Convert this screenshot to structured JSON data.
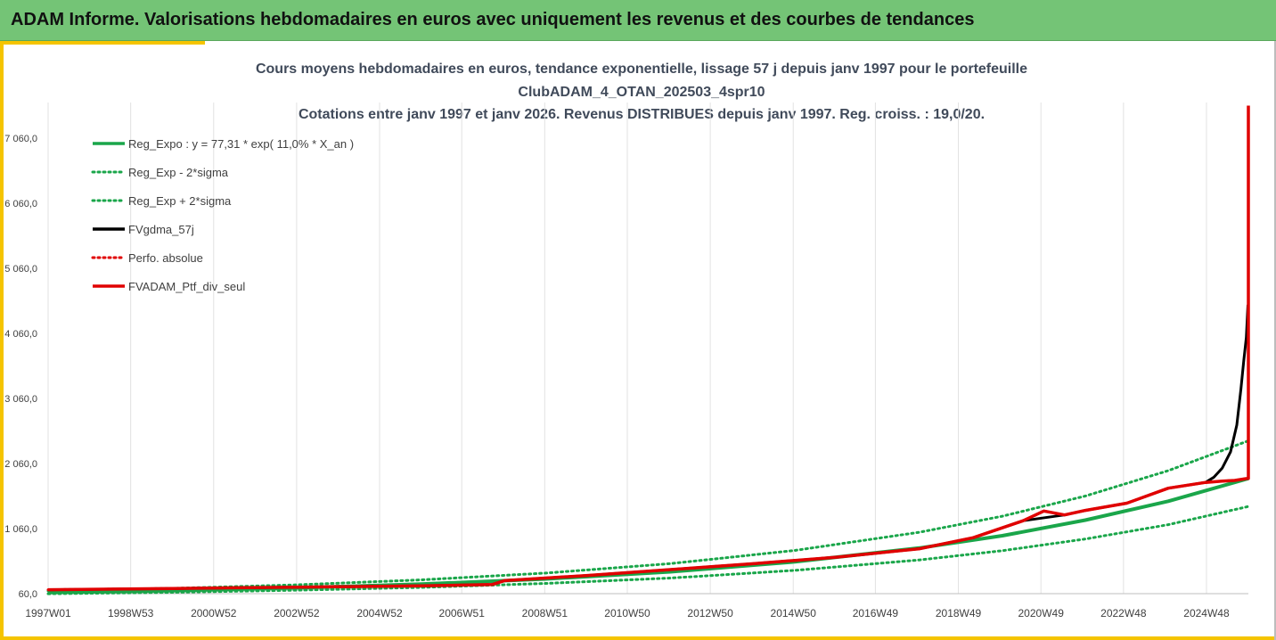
{
  "banner": {
    "title": "ADAM Informe. Valorisations hebdomadaires en euros avec uniquement les revenus et des courbes de tendances"
  },
  "colors": {
    "banner": "#74c476",
    "accent": "#f5c400",
    "green": "#1aa64a",
    "black": "#000000",
    "red": "#e00000"
  },
  "chart_data": {
    "type": "line",
    "title_lines": [
      "Cours moyens hebdomadaires  en euros, tendance exponentielle, lissage 57 j depuis janv 1997 pour le portefeuille",
      "ClubADAM_4_OTAN_202503_4spr10",
      "Cotations entre janv 1997 et janv 2026. Revenus DISTRIBUES depuis janv 1997. Reg. croiss. : 19,0/20."
    ],
    "xlim": [
      1997.0,
      2025.93
    ],
    "ylim": [
      60,
      7060
    ],
    "yticks": [
      60,
      1060,
      2060,
      3060,
      4060,
      5060,
      6060,
      7060
    ],
    "ytick_labels": [
      "60,0",
      "1 060,0",
      "2 060,0",
      "3 060,0",
      "4 060,0",
      "5 060,0",
      "6 060,0",
      "7 060,0"
    ],
    "xticks": [
      1997.0,
      1998.99,
      2000.99,
      2002.99,
      2004.99,
      2006.97,
      2008.97,
      2010.96,
      2012.96,
      2014.96,
      2016.94,
      2018.94,
      2020.93,
      2022.92,
      2024.92
    ],
    "xtick_labels": [
      "1997W01",
      "1998W53",
      "2000W52",
      "2002W52",
      "2004W52",
      "2006W51",
      "2008W51",
      "2010W50",
      "2012W50",
      "2014W50",
      "2016W49",
      "2018W49",
      "2020W49",
      "2022W48",
      "2024W48"
    ],
    "grid": "vertical",
    "legend_position": "top-left",
    "series": [
      {
        "name": "Reg_Expo : y = 77,31 * exp( 11,0% *  X_an )",
        "style": "solid",
        "color": "#1aa64a",
        "x": [
          1997.0,
          2000.0,
          2003.0,
          2006.0,
          2009.0,
          2012.0,
          2015.0,
          2018.0,
          2020.0,
          2022.0,
          2024.0,
          2025.93
        ],
        "y": [
          77,
          107,
          149,
          206,
          286,
          396,
          549,
          762,
          950,
          1190,
          1480,
          1830
        ]
      },
      {
        "name": "Reg_Exp - 2*sigma",
        "style": "dotted",
        "color": "#1aa64a",
        "x": [
          1997.0,
          2000.0,
          2003.0,
          2006.0,
          2009.0,
          2012.0,
          2015.0,
          2018.0,
          2020.0,
          2022.0,
          2024.0,
          2025.93
        ],
        "y": [
          58,
          81,
          113,
          156,
          217,
          300,
          417,
          578,
          720,
          900,
          1120,
          1400
        ]
      },
      {
        "name": "Reg_Exp + 2*sigma",
        "style": "dotted",
        "color": "#1aa64a",
        "x": [
          1997.0,
          2000.0,
          2003.0,
          2006.0,
          2009.0,
          2012.0,
          2015.0,
          2018.0,
          2020.0,
          2022.0,
          2024.0,
          2025.93
        ],
        "y": [
          101,
          141,
          196,
          272,
          377,
          522,
          724,
          1004,
          1250,
          1560,
          1950,
          2410
        ]
      },
      {
        "name": "FVgdma_57j",
        "style": "solid",
        "color": "#000000",
        "x": [
          1997.0,
          2000.0,
          2003.0,
          2006.0,
          2007.7,
          2008.0,
          2010.0,
          2012.0,
          2014.0,
          2016.0,
          2018.0,
          2019.3,
          2020.5,
          2021.5,
          2022.0,
          2023.0,
          2024.0,
          2024.9,
          2025.1,
          2025.3,
          2025.5,
          2025.65,
          2025.75,
          2025.82,
          2025.88,
          2025.92
        ],
        "y": [
          120,
          140,
          160,
          180,
          200,
          260,
          340,
          430,
          520,
          620,
          750,
          920,
          1180,
          1270,
          1340,
          1450,
          1680,
          1770,
          1850,
          1990,
          2240,
          2650,
          3200,
          3650,
          4000,
          4500
        ]
      },
      {
        "name": "Perfo. absolue",
        "style": "dotted",
        "color": "#e00000",
        "x": [
          1997.0,
          2000.0,
          2003.0,
          2006.0,
          2007.7,
          2008.0,
          2010.0,
          2012.0,
          2014.0,
          2016.0,
          2018.0,
          2019.3,
          2020.5,
          2021.0,
          2021.5,
          2022.0,
          2023.0,
          2024.0,
          2024.9,
          2025.3,
          2025.6,
          2025.9
        ],
        "y": [
          120,
          140,
          160,
          180,
          200,
          260,
          340,
          430,
          520,
          620,
          750,
          920,
          1180,
          1330,
          1270,
          1340,
          1450,
          1680,
          1770,
          1790,
          1800,
          1830
        ]
      },
      {
        "name": "FVADAM_Ptf_div_seul",
        "style": "solid",
        "color": "#e00000",
        "x": [
          1997.0,
          2000.0,
          2003.0,
          2006.0,
          2007.7,
          2008.0,
          2010.0,
          2012.0,
          2014.0,
          2016.0,
          2018.0,
          2019.3,
          2020.5,
          2021.0,
          2021.5,
          2022.0,
          2023.0,
          2024.0,
          2024.9,
          2025.3,
          2025.6,
          2025.9,
          2025.93,
          2025.93
        ],
        "y": [
          120,
          140,
          160,
          180,
          200,
          260,
          340,
          430,
          520,
          620,
          750,
          920,
          1180,
          1330,
          1270,
          1340,
          1450,
          1680,
          1770,
          1790,
          1800,
          1830,
          1830,
          7560
        ]
      }
    ]
  }
}
